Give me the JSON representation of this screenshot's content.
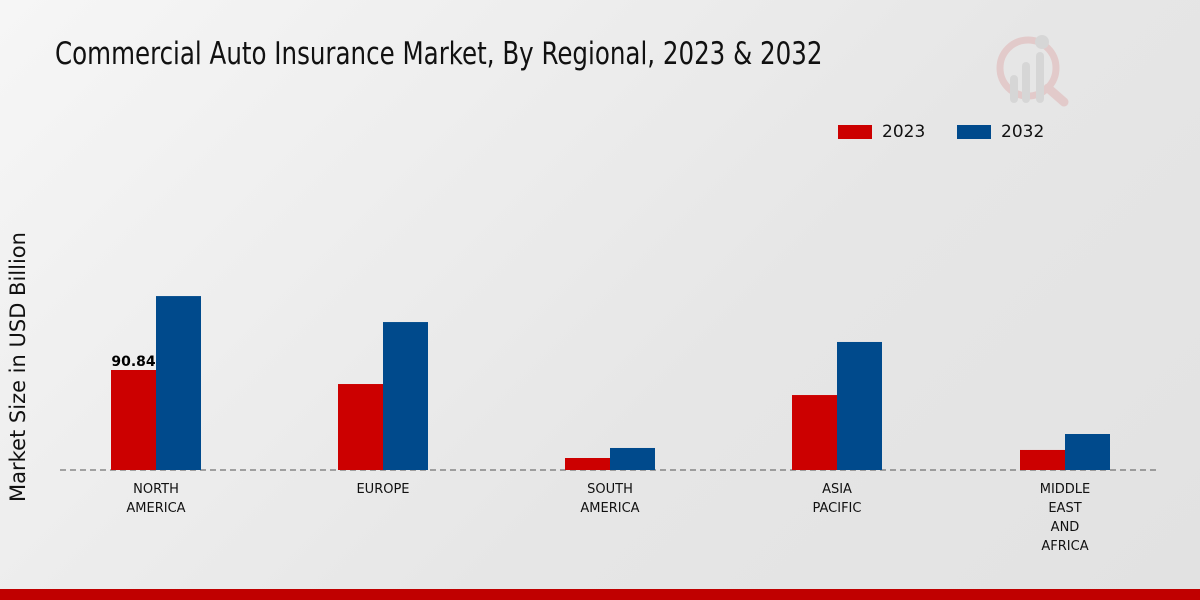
{
  "chart_data": {
    "type": "bar",
    "title": "Commercial Auto Insurance Market, By Regional, 2023 & 2032",
    "ylabel": "Market Size in USD Billion",
    "xlabel": "",
    "categories": [
      [
        "NORTH",
        "AMERICA"
      ],
      [
        "EUROPE"
      ],
      [
        "SOUTH",
        "AMERICA"
      ],
      [
        "ASIA",
        "PACIFIC"
      ],
      [
        "MIDDLE",
        "EAST",
        "AND",
        "AFRICA"
      ]
    ],
    "series": [
      {
        "name": "2023",
        "color": "#cc0000",
        "values": [
          90.84,
          78.1,
          10.9,
          68.1,
          18.2
        ]
      },
      {
        "name": "2032",
        "color": "#004a8c",
        "values": [
          158.0,
          134.4,
          20.0,
          116.3,
          32.7
        ]
      }
    ],
    "data_labels": [
      {
        "series": 0,
        "index": 0,
        "text": "90.84"
      }
    ],
    "ylim": [
      0,
      200
    ],
    "grid": false,
    "legend_position": "top-right"
  }
}
